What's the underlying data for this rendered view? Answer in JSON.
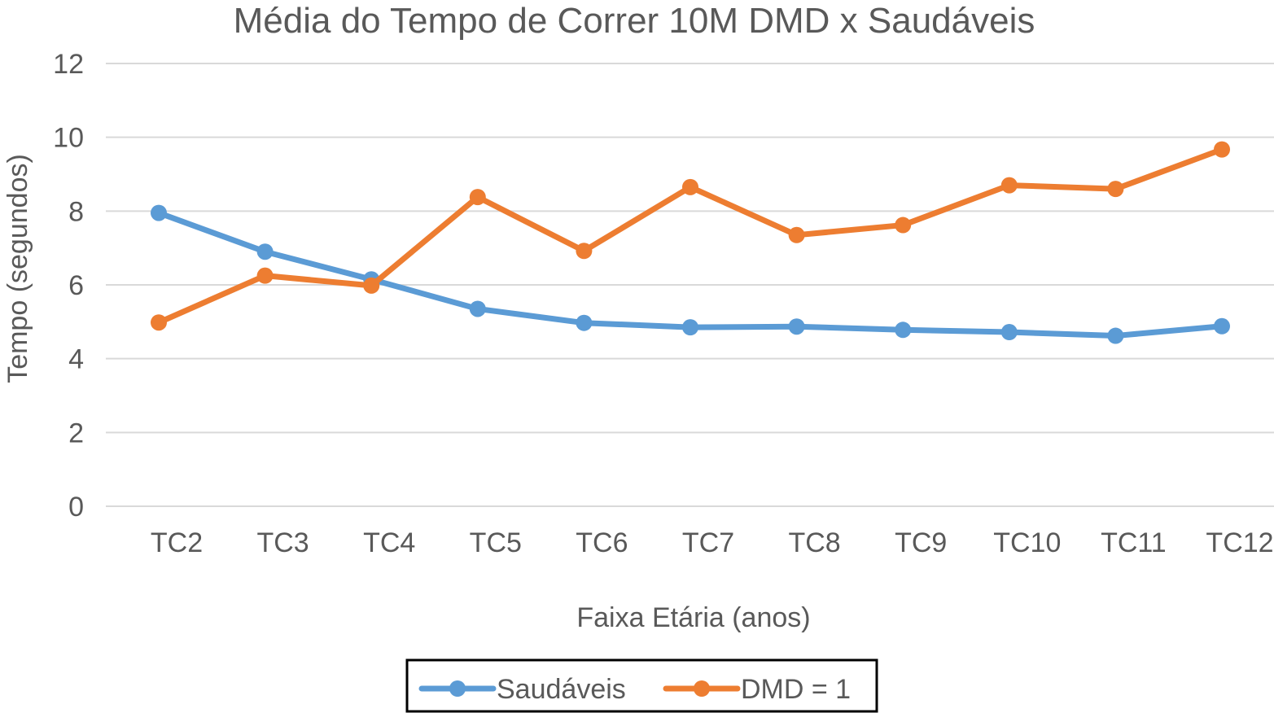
{
  "chart_data": {
    "type": "line",
    "title": "Média do Tempo de Correr 10M DMD x Saudáveis",
    "xlabel": "Faixa Etária (anos)",
    "ylabel": "Tempo (segundos)",
    "categories": [
      "TC2",
      "TC3",
      "TC4",
      "TC5",
      "TC6",
      "TC7",
      "TC8",
      "TC9",
      "TC10",
      "TC11",
      "TC12"
    ],
    "ylim": [
      0,
      12
    ],
    "yticks": [
      "0",
      "2",
      "4",
      "6",
      "8",
      "10",
      "12"
    ],
    "grid": true,
    "legend_position": "bottom",
    "series": [
      {
        "name": "Saudáveis",
        "color": "#5b9bd5",
        "values": [
          7.95,
          6.9,
          6.15,
          5.35,
          4.97,
          4.85,
          4.87,
          4.78,
          4.72,
          4.62,
          4.88
        ]
      },
      {
        "name": "DMD = 1",
        "color": "#ed7d31",
        "values": [
          4.98,
          6.25,
          5.98,
          8.38,
          6.92,
          8.65,
          7.35,
          7.62,
          8.7,
          8.6,
          9.67
        ]
      }
    ]
  }
}
